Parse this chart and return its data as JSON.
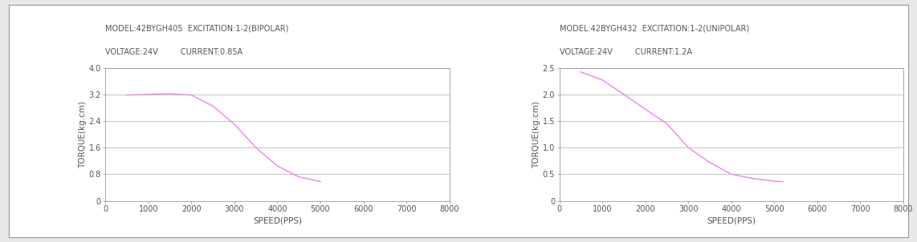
{
  "chart1": {
    "title_line1": "MODEL:42BYGH405  EXCITATION:1-2(BIPOLAR)",
    "title_line2": "VOLTAGE:24V         CURRENT:0.85A",
    "xlabel": "SPEED(PPS)",
    "ylabel": "TORQUE(kg.cm)",
    "xlim": [
      0,
      8000
    ],
    "ylim": [
      0,
      4.0
    ],
    "yticks": [
      0,
      0.8,
      1.6,
      2.4,
      3.2,
      4.0
    ],
    "xticks": [
      0,
      1000,
      2000,
      3000,
      4000,
      5000,
      6000,
      7000,
      8000
    ],
    "curve_x": [
      500,
      1000,
      1500,
      2000,
      2500,
      3000,
      3500,
      4000,
      4500,
      5000
    ],
    "curve_y": [
      3.18,
      3.2,
      3.22,
      3.18,
      2.85,
      2.3,
      1.6,
      1.05,
      0.72,
      0.58
    ],
    "curve_color": "#ee82ee",
    "grid_color": "#aaaaaa"
  },
  "chart2": {
    "title_line1": "MODEL:42BYGH432  EXCITATION:1-2(UNIPOLAR)",
    "title_line2": "VOLTAGE:24V         CURRENT:1.2A",
    "xlabel": "SPEED(PPS)",
    "ylabel": "TORQUE(kg.cm)",
    "xlim": [
      0,
      8000
    ],
    "ylim": [
      0,
      2.5
    ],
    "yticks": [
      0,
      0.5,
      1.0,
      1.5,
      2.0,
      2.5
    ],
    "xticks": [
      0,
      1000,
      2000,
      3000,
      4000,
      5000,
      6000,
      7000,
      8000
    ],
    "curve_x": [
      500,
      1000,
      1500,
      2000,
      2500,
      3000,
      3500,
      4000,
      4500,
      5000,
      5200
    ],
    "curve_y": [
      2.42,
      2.27,
      2.0,
      1.72,
      1.45,
      1.0,
      0.72,
      0.5,
      0.42,
      0.37,
      0.36
    ],
    "curve_color": "#ee82ee",
    "grid_color": "#aaaaaa"
  },
  "fig_bg": "#ffffff",
  "outer_bg": "#e8e8e8",
  "border_color": "#999999",
  "font_size_title": 7.0,
  "font_size_axis_label": 7.5,
  "font_size_tick": 7.0,
  "title_color": "#555555",
  "axis_color": "#888888",
  "tick_color": "#555555"
}
